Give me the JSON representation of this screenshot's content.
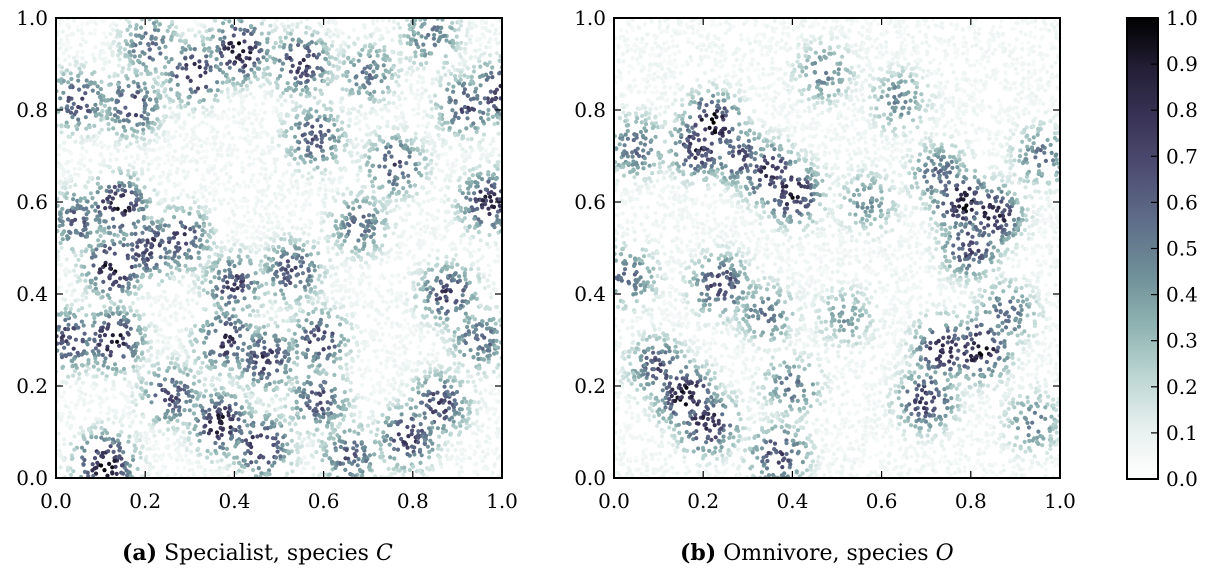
{
  "chart_data": [
    {
      "type": "scatter",
      "panel_label": "(a)",
      "caption": "Specialist, species",
      "species": "C",
      "xlim": [
        0.0,
        1.0
      ],
      "ylim": [
        0.0,
        1.0
      ],
      "xticks": [
        "0.0",
        "0.2",
        "0.4",
        "0.6",
        "0.8",
        "1.0"
      ],
      "yticks": [
        "0.0",
        "0.2",
        "0.4",
        "0.6",
        "0.8",
        "1.0"
      ],
      "color_scale": [
        0.0,
        1.0
      ],
      "approx_points": 7000,
      "dense_dark_clusters": [
        {
          "x": 0.41,
          "y": 0.93,
          "v": 0.95
        },
        {
          "x": 0.31,
          "y": 0.88,
          "v": 0.85
        },
        {
          "x": 0.55,
          "y": 0.9,
          "v": 0.8
        },
        {
          "x": 0.17,
          "y": 0.81,
          "v": 0.75
        },
        {
          "x": 0.05,
          "y": 0.82,
          "v": 0.7
        },
        {
          "x": 0.21,
          "y": 0.94,
          "v": 0.6
        },
        {
          "x": 0.99,
          "y": 0.84,
          "v": 0.75
        },
        {
          "x": 0.92,
          "y": 0.81,
          "v": 0.7
        },
        {
          "x": 0.58,
          "y": 0.74,
          "v": 0.7
        },
        {
          "x": 0.76,
          "y": 0.68,
          "v": 0.7
        },
        {
          "x": 0.14,
          "y": 0.59,
          "v": 0.9
        },
        {
          "x": 0.97,
          "y": 0.6,
          "v": 0.85
        },
        {
          "x": 0.05,
          "y": 0.56,
          "v": 0.65
        },
        {
          "x": 0.21,
          "y": 0.5,
          "v": 0.8
        },
        {
          "x": 0.28,
          "y": 0.52,
          "v": 0.75
        },
        {
          "x": 0.68,
          "y": 0.55,
          "v": 0.6
        },
        {
          "x": 0.13,
          "y": 0.46,
          "v": 0.95
        },
        {
          "x": 0.4,
          "y": 0.42,
          "v": 0.75
        },
        {
          "x": 0.53,
          "y": 0.45,
          "v": 0.7
        },
        {
          "x": 0.88,
          "y": 0.4,
          "v": 0.75
        },
        {
          "x": 0.13,
          "y": 0.3,
          "v": 0.9
        },
        {
          "x": 0.03,
          "y": 0.3,
          "v": 0.75
        },
        {
          "x": 0.38,
          "y": 0.3,
          "v": 0.8
        },
        {
          "x": 0.59,
          "y": 0.3,
          "v": 0.75
        },
        {
          "x": 0.47,
          "y": 0.26,
          "v": 0.8
        },
        {
          "x": 0.26,
          "y": 0.18,
          "v": 0.7
        },
        {
          "x": 0.37,
          "y": 0.12,
          "v": 0.9
        },
        {
          "x": 0.46,
          "y": 0.07,
          "v": 0.85
        },
        {
          "x": 0.59,
          "y": 0.17,
          "v": 0.7
        },
        {
          "x": 0.11,
          "y": 0.03,
          "v": 0.95
        },
        {
          "x": 0.79,
          "y": 0.09,
          "v": 0.8
        },
        {
          "x": 0.86,
          "y": 0.16,
          "v": 0.75
        },
        {
          "x": 0.95,
          "y": 0.3,
          "v": 0.6
        },
        {
          "x": 0.66,
          "y": 0.05,
          "v": 0.65
        },
        {
          "x": 0.7,
          "y": 0.88,
          "v": 0.55
        },
        {
          "x": 0.84,
          "y": 0.96,
          "v": 0.55
        }
      ]
    },
    {
      "type": "scatter",
      "panel_label": "(b)",
      "caption": "Omnivore, species",
      "species": "O",
      "xlim": [
        0.0,
        1.0
      ],
      "ylim": [
        0.0,
        1.0
      ],
      "xticks": [
        "0.0",
        "0.2",
        "0.4",
        "0.6",
        "0.8",
        "1.0"
      ],
      "yticks": [
        "0.0",
        "0.2",
        "0.4",
        "0.6",
        "0.8",
        "1.0"
      ],
      "color_scale": [
        0.0,
        1.0
      ],
      "approx_points": 7000,
      "dense_dark_clusters": [
        {
          "x": 0.22,
          "y": 0.77,
          "v": 0.95
        },
        {
          "x": 0.19,
          "y": 0.72,
          "v": 0.85
        },
        {
          "x": 0.35,
          "y": 0.66,
          "v": 0.85
        },
        {
          "x": 0.4,
          "y": 0.62,
          "v": 0.9
        },
        {
          "x": 0.28,
          "y": 0.7,
          "v": 0.7
        },
        {
          "x": 0.05,
          "y": 0.72,
          "v": 0.6
        },
        {
          "x": 0.78,
          "y": 0.6,
          "v": 0.95
        },
        {
          "x": 0.85,
          "y": 0.57,
          "v": 0.9
        },
        {
          "x": 0.8,
          "y": 0.5,
          "v": 0.75
        },
        {
          "x": 0.73,
          "y": 0.66,
          "v": 0.6
        },
        {
          "x": 0.24,
          "y": 0.42,
          "v": 0.75
        },
        {
          "x": 0.03,
          "y": 0.44,
          "v": 0.6
        },
        {
          "x": 0.34,
          "y": 0.36,
          "v": 0.55
        },
        {
          "x": 0.16,
          "y": 0.18,
          "v": 0.95
        },
        {
          "x": 0.21,
          "y": 0.12,
          "v": 0.9
        },
        {
          "x": 0.1,
          "y": 0.24,
          "v": 0.7
        },
        {
          "x": 0.74,
          "y": 0.28,
          "v": 0.9
        },
        {
          "x": 0.82,
          "y": 0.28,
          "v": 0.95
        },
        {
          "x": 0.7,
          "y": 0.17,
          "v": 0.8
        },
        {
          "x": 0.88,
          "y": 0.36,
          "v": 0.6
        },
        {
          "x": 0.37,
          "y": 0.05,
          "v": 0.75
        },
        {
          "x": 0.47,
          "y": 0.88,
          "v": 0.5
        },
        {
          "x": 0.64,
          "y": 0.82,
          "v": 0.5
        },
        {
          "x": 0.96,
          "y": 0.7,
          "v": 0.55
        },
        {
          "x": 0.57,
          "y": 0.6,
          "v": 0.45
        },
        {
          "x": 0.52,
          "y": 0.35,
          "v": 0.4
        },
        {
          "x": 0.94,
          "y": 0.12,
          "v": 0.5
        },
        {
          "x": 0.4,
          "y": 0.2,
          "v": 0.55
        }
      ]
    }
  ],
  "colorbar": {
    "ticks": [
      "0.0",
      "0.1",
      "0.2",
      "0.3",
      "0.4",
      "0.5",
      "0.6",
      "0.7",
      "0.8",
      "0.9",
      "1.0"
    ],
    "range": [
      0.0,
      1.0
    ],
    "colormap": [
      "#ffffff",
      "#e6f0ee",
      "#bcd6d3",
      "#8fb3b2",
      "#6f8f98",
      "#5f6f8a",
      "#4f4f73",
      "#3a3458",
      "#241f36",
      "#000000"
    ]
  }
}
